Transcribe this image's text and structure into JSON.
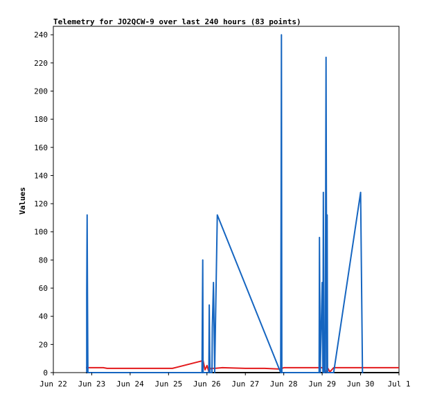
{
  "chart_data": {
    "type": "line",
    "title": "Telemetry for JO2QCW-9 over last 240 hours (83 points)",
    "xlabel": "",
    "ylabel": "Values",
    "x_tick_labels": [
      "Jun 22",
      "Jun 23",
      "Jun 24",
      "Jun 25",
      "Jun 26",
      "Jun 27",
      "Jun 28",
      "Jun 29",
      "Jun 30",
      "Jul 1"
    ],
    "y_tick_labels": [
      "0",
      "20",
      "40",
      "60",
      "80",
      "100",
      "120",
      "140",
      "160",
      "180",
      "200",
      "220",
      "240"
    ],
    "xlim": [
      0,
      9
    ],
    "ylim": [
      0,
      246
    ],
    "grid": false,
    "legend": "none",
    "series": [
      {
        "color": "#000000",
        "x": [
          0.85,
          9.0
        ],
        "y": [
          0,
          0
        ]
      },
      {
        "color": "#e31a1c",
        "x": [
          0.85,
          1.3,
          1.4,
          2.0,
          2.5,
          3.1,
          3.9,
          3.95,
          4.0,
          4.05,
          4.1,
          4.2,
          4.4,
          5.0,
          5.5,
          5.9,
          6.0,
          6.5,
          7.0,
          7.1,
          7.15,
          7.2,
          7.3,
          7.4,
          7.6,
          8.0,
          8.6,
          9.0
        ],
        "y": [
          3.5,
          3.5,
          3.0,
          3.0,
          3.0,
          3.0,
          8.5,
          2.0,
          5.0,
          0.5,
          3.0,
          3.0,
          3.5,
          3.0,
          3.0,
          2.5,
          3.5,
          3.5,
          3.5,
          0.5,
          3.0,
          0.5,
          3.5,
          3.5,
          3.5,
          3.5,
          3.5,
          3.5
        ]
      },
      {
        "color": "#1565c0",
        "x": [
          0.87,
          0.87,
          0.88,
          0.89,
          0.9,
          0.9,
          3.87,
          3.88,
          3.89,
          3.9,
          3.92,
          4.05,
          4.06,
          4.07,
          4.08,
          4.13,
          4.14,
          4.17,
          4.2,
          4.27,
          5.92,
          5.93,
          5.94,
          5.95,
          6.0,
          6.92,
          6.93,
          6.95,
          7.0,
          7.02,
          7.03,
          7.05,
          7.08,
          7.1,
          7.12,
          7.13,
          7.14,
          7.15,
          7.17,
          7.2,
          7.22,
          7.25,
          7.3,
          8.0,
          8.05,
          8.06,
          8.07
        ],
        "y": [
          0,
          56,
          112,
          56,
          0,
          0,
          0,
          40,
          80,
          0,
          0,
          0,
          48,
          16,
          0,
          0,
          32,
          64,
          0,
          112,
          0,
          120,
          240,
          0,
          0,
          0,
          96,
          0,
          64,
          0,
          128,
          0,
          0,
          224,
          0,
          112,
          0,
          0,
          0,
          0,
          0,
          0,
          0,
          128,
          0,
          0,
          0
        ]
      }
    ]
  }
}
